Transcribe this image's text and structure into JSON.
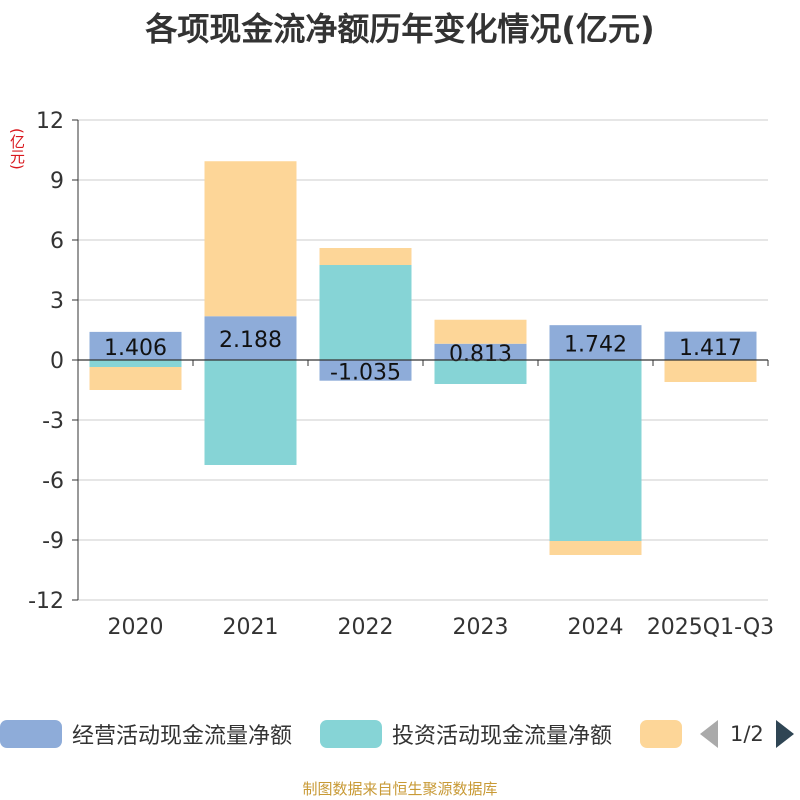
{
  "chart_data": {
    "type": "bar",
    "stacked": true,
    "title": "各项现金流净额历年变化情况(亿元)",
    "ylabel": "(亿元)",
    "xlabel": "",
    "ylim": [
      -12,
      12
    ],
    "yticks": [
      12,
      9,
      6,
      3,
      0,
      -3,
      -6,
      -9,
      -12
    ],
    "grid": true,
    "categories": [
      "2020",
      "2021",
      "2022",
      "2023",
      "2024",
      "2025Q1-Q3"
    ],
    "series": [
      {
        "name": "经营活动现金流量净额",
        "color": "#8eacd9",
        "values": [
          1.406,
          2.188,
          -1.035,
          0.813,
          1.742,
          1.417
        ],
        "labels": [
          "1.406",
          "2.188",
          "-1.035",
          "0.813",
          "1.742",
          "1.417"
        ]
      },
      {
        "name": "投资活动现金流量净额",
        "color": "#86d4d6",
        "values": [
          -0.35,
          -5.25,
          4.75,
          -1.2,
          -9.05,
          0
        ]
      },
      {
        "name": "",
        "color": "#fdd698",
        "values": [
          -1.15,
          7.75,
          0.85,
          1.2,
          -0.7,
          -1.1
        ]
      }
    ],
    "legend_position": "bottom"
  },
  "legend": {
    "items": [
      "经营活动现金流量净额",
      "投资活动现金流量净额",
      ""
    ],
    "page": "1/2"
  },
  "source_note": "制图数据来自恒生聚源数据库"
}
